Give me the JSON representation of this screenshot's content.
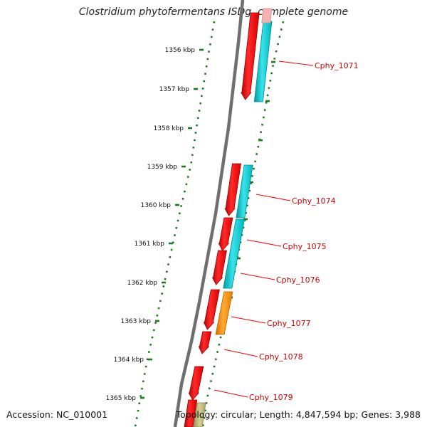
{
  "title": "Clostridium phytofermentans ISDg, complete genome",
  "footer": {
    "accession": "Accession: NC_010001",
    "summary": "Topology: circular; Length: 4,847,594 bp; Genes: 3,988"
  },
  "scale": {
    "unit": "kbp",
    "ticks": [
      "1356 kbp",
      "1357 kbp",
      "1358 kbp",
      "1359 kbp",
      "1360 kbp",
      "1361 kbp",
      "1362 kbp",
      "1363 kbp",
      "1364 kbp",
      "1365 kbp"
    ]
  },
  "gene_labels": [
    "Cphy_1071",
    "Cphy_1074",
    "Cphy_1075",
    "Cphy_1076",
    "Cphy_1077",
    "Cphy_1078",
    "Cphy_1079"
  ],
  "colors": {
    "backbone": "#808080",
    "ruler": "#1a7a1a",
    "cds": "#ff0000",
    "cds_alt": "#00c8d0",
    "cds_orange": "#ff8c00",
    "cds_olive": "#bdb76b",
    "label_text": "#cc0000"
  }
}
